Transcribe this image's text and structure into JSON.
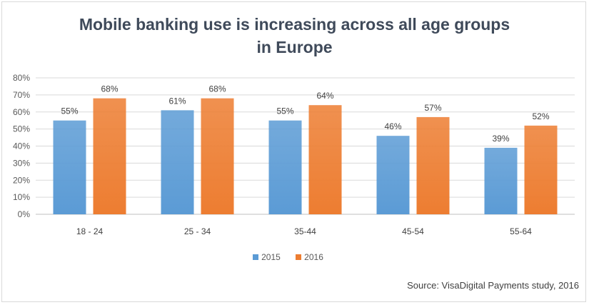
{
  "chart_data": {
    "type": "bar",
    "title_lines": [
      "Mobile banking use is increasing across all age groups",
      "in Europe"
    ],
    "categories": [
      "18 - 24",
      "25 - 34",
      "35-44",
      "45-54",
      "55-64"
    ],
    "series": [
      {
        "name": "2015",
        "values": [
          55,
          61,
          55,
          46,
          39
        ],
        "labels": [
          "55%",
          "61%",
          "55%",
          "46%",
          "39%"
        ],
        "color": "#5b9bd5"
      },
      {
        "name": "2016",
        "values": [
          68,
          68,
          64,
          57,
          52
        ],
        "labels": [
          "68%",
          "68%",
          "64%",
          "57%",
          "52%"
        ],
        "color": "#ed7d31"
      }
    ],
    "ylim": [
      0,
      80
    ],
    "yticks": [
      0,
      10,
      20,
      30,
      40,
      50,
      60,
      70,
      80
    ],
    "ytick_labels": [
      "0%",
      "10%",
      "20%",
      "30%",
      "40%",
      "50%",
      "60%",
      "70%",
      "80%"
    ],
    "grid": true,
    "legend_position": "bottom",
    "source": "Source: VisaDigital Payments study, 2016"
  }
}
